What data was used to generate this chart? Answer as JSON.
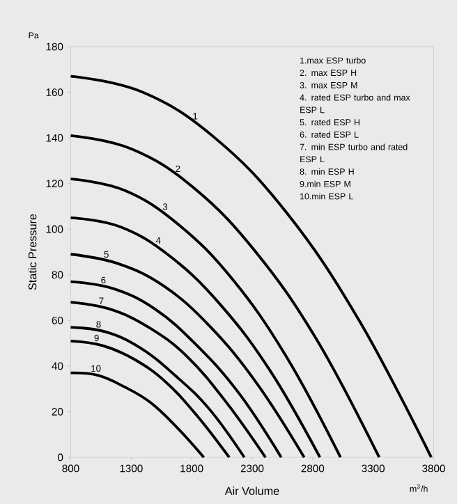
{
  "chart_data": {
    "type": "line",
    "xlabel": "Air Volume",
    "ylabel": "Static Pressure",
    "xlim": [
      800,
      3800
    ],
    "xticks": [
      800,
      1300,
      1800,
      2300,
      2800,
      3300,
      3800
    ],
    "ylim": [
      0,
      180
    ],
    "yticks": [
      0,
      20,
      40,
      60,
      80,
      100,
      120,
      140,
      160,
      180
    ],
    "grid": false,
    "marker": "none",
    "line_style": "solid",
    "annotations": [
      "Pa",
      "m$^{3}$/h",
      "1.max ESP turbo",
      "2. max ESP H",
      "3. max ESP M",
      "4. rated ESP turbo and max ESP L",
      "5. rated ESP H",
      "6. rated ESP L",
      "7. min ESP turbo and rated ESP L",
      "8. min ESP H",
      "9.min ESP M",
      "10.min ESP L"
    ],
    "series": [
      {
        "name": "1",
        "color": "#000000",
        "x": [
          800,
          1396,
          1992,
          2588,
          3184,
          3780
        ],
        "values": [
          167,
          160,
          140,
          107,
          60,
          0
        ]
      },
      {
        "name": "2",
        "color": "#000000",
        "x": [
          800,
          1310,
          1820,
          2330,
          2840,
          3350
        ],
        "values": [
          141,
          135,
          118,
          90,
          51,
          0
        ]
      },
      {
        "name": "3",
        "color": "#000000",
        "x": [
          800,
          1246,
          1692,
          2138,
          2584,
          3030
        ],
        "values": [
          122,
          117,
          102,
          78,
          44,
          0
        ]
      },
      {
        "name": "4",
        "color": "#000000",
        "x": [
          800,
          1212,
          1624,
          2036,
          2448,
          2860
        ],
        "values": [
          105,
          101,
          88,
          67,
          38,
          0
        ]
      },
      {
        "name": "5",
        "color": "#000000",
        "x": [
          800,
          1186,
          1572,
          1958,
          2344,
          2730
        ],
        "values": [
          89,
          85,
          75,
          57,
          32,
          0
        ]
      },
      {
        "name": "6",
        "color": "#000000",
        "x": [
          800,
          1148,
          1496,
          1844,
          2192,
          2540
        ],
        "values": [
          77,
          74,
          65,
          49,
          28,
          0
        ]
      },
      {
        "name": "7",
        "color": "#000000",
        "x": [
          800,
          1122,
          1444,
          1766,
          2088,
          2410
        ],
        "values": [
          68,
          65,
          57,
          44,
          24,
          0
        ]
      },
      {
        "name": "8",
        "color": "#000000",
        "x": [
          800,
          1087,
          1374,
          1661,
          1948,
          2235
        ],
        "values": [
          57,
          55,
          48,
          36,
          21,
          0
        ]
      },
      {
        "name": "9",
        "color": "#000000",
        "x": [
          800,
          1062,
          1324,
          1586,
          1848,
          2110
        ],
        "values": [
          51,
          49,
          43,
          33,
          18,
          0
        ]
      },
      {
        "name": "10",
        "color": "#000000",
        "x": [
          800,
          1020,
          1240,
          1460,
          1680,
          1900
        ],
        "values": [
          37,
          36,
          31,
          24,
          13,
          0
        ]
      }
    ]
  }
}
